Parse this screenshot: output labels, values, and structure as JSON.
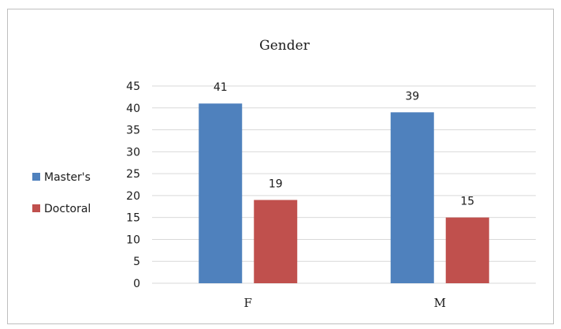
{
  "chart_data": {
    "type": "bar",
    "title": "Gender",
    "categories": [
      "F",
      "M"
    ],
    "series": [
      {
        "name": "Master's",
        "values": [
          41,
          39
        ],
        "color": "#4f81bd"
      },
      {
        "name": "Doctoral",
        "values": [
          19,
          15
        ],
        "color": "#c0504d"
      }
    ],
    "ylim": [
      0,
      45
    ],
    "yticks": [
      0,
      5,
      10,
      15,
      20,
      25,
      30,
      35,
      40,
      45
    ],
    "grid": true,
    "legend_position": "left",
    "data_labels": true,
    "gridline_color": "#d9d9d9"
  }
}
